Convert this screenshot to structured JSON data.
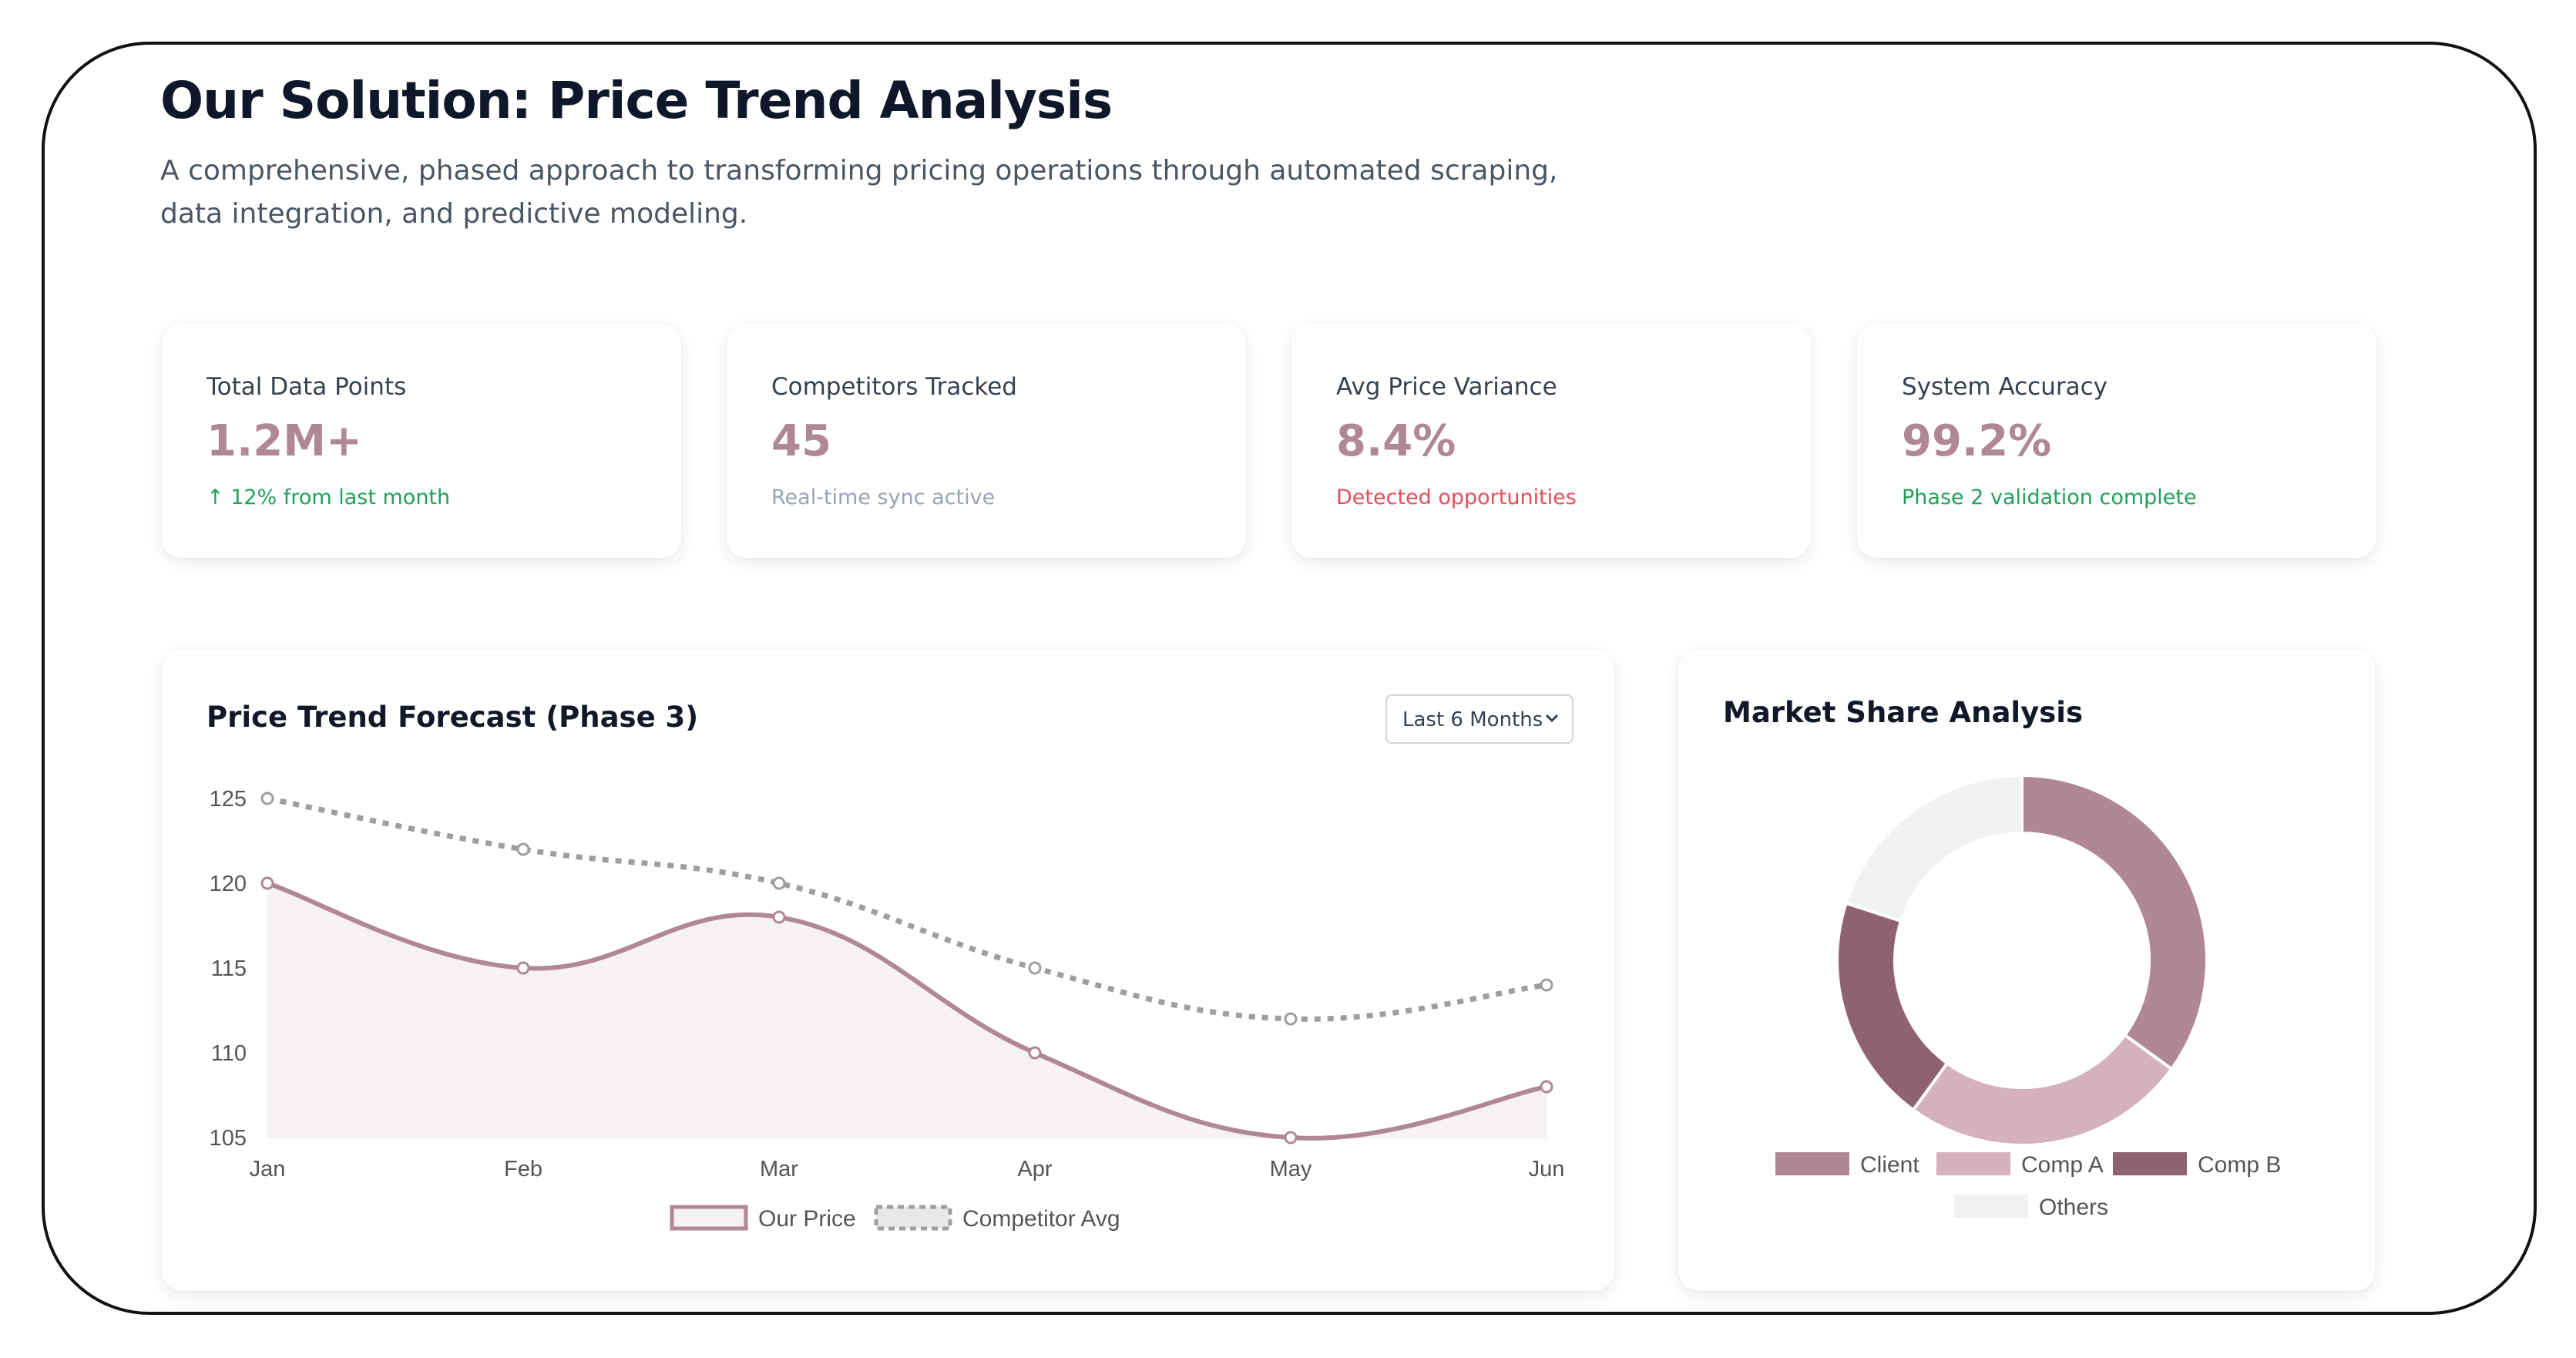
{
  "header": {
    "title": "Our Solution: Price Trend Analysis",
    "subtitle": "A comprehensive, phased approach to transforming pricing operations through automated scraping, data integration, and predictive modeling."
  },
  "stats": [
    {
      "label": "Total Data Points",
      "value": "1.2M+",
      "sub": "↑ 12% from last month",
      "sub_color": "#22a05a"
    },
    {
      "label": "Competitors Tracked",
      "value": "45",
      "sub": "Real-time sync active",
      "sub_color": "#9ca3af"
    },
    {
      "label": "Avg Price Variance",
      "value": "8.4%",
      "sub": "Detected opportunities",
      "sub_color": "#e0505a"
    },
    {
      "label": "System Accuracy",
      "value": "99.2%",
      "sub": "Phase 2 validation complete",
      "sub_color": "#22a05a"
    }
  ],
  "colors": {
    "accent": "#b08794",
    "competitor": "#9e9e9e",
    "comp_a": "#d4b1bc",
    "comp_b": "#8f6273",
    "others": "#f0f1f2"
  },
  "line_panel": {
    "title": "Price Trend Forecast (Phase 3)",
    "dropdown_value": "Last 6 Months"
  },
  "donut_panel": {
    "title": "Market Share Analysis"
  },
  "chart_data": [
    {
      "type": "line",
      "title": "Price Trend Forecast (Phase 3)",
      "x": [
        "Jan",
        "Feb",
        "Mar",
        "Apr",
        "May",
        "Jun"
      ],
      "ylim": [
        105,
        125
      ],
      "yticks": [
        105,
        110,
        115,
        120,
        125
      ],
      "legend_position": "bottom",
      "grid": false,
      "series": [
        {
          "name": "Our Price",
          "values": [
            120,
            115,
            118,
            110,
            105,
            108
          ],
          "color": "#b08794",
          "fill": true,
          "dashed": false
        },
        {
          "name": "Competitor Avg",
          "values": [
            125,
            122,
            120,
            115,
            112,
            114
          ],
          "color": "#9e9e9e",
          "fill": false,
          "dashed": true
        }
      ]
    },
    {
      "type": "pie",
      "title": "Market Share Analysis",
      "legend_position": "bottom",
      "categories": [
        "Client",
        "Comp A",
        "Comp B",
        "Others"
      ],
      "values": [
        35,
        25,
        20,
        20
      ],
      "colors": [
        "#b08794",
        "#d4b1bc",
        "#8f6273",
        "#f0f1f2"
      ]
    }
  ]
}
